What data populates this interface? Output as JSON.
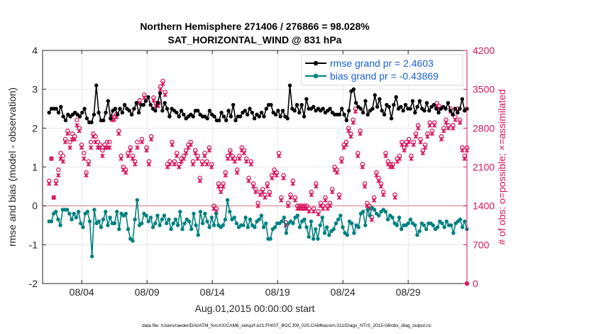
{
  "chart_data": {
    "type": "line",
    "title_line1": "Northern Hemisphere 271406 / 276866 = 98.028%",
    "title_line2": "SAT_HORIZONTAL_WIND @ 831 hPa",
    "xlabel": "Aug.01,2015 00:00:00 start",
    "ylabel_left": "rmse and bias (model - observation)",
    "ylabel_right": "# of obs: o=possible; ×=assimilated",
    "footnote": "data file: /Users/raeder/DAI/ATM_forcXX/CAM6_setup/f.e21.FHIST_BGC.f09_025.CAM6assim.011/Diags_NTrS_2015-08/obs_diag_output.nc",
    "x_range": [
      0,
      32.5
    ],
    "ylim_left": [
      -2,
      4
    ],
    "ylim_right": [
      0,
      4200
    ],
    "x_ticks": [
      {
        "pos": 3,
        "label": "08/04"
      },
      {
        "pos": 8,
        "label": "08/09"
      },
      {
        "pos": 13,
        "label": "08/14"
      },
      {
        "pos": 18,
        "label": "08/19"
      },
      {
        "pos": 23,
        "label": "08/24"
      },
      {
        "pos": 28,
        "label": "08/29"
      }
    ],
    "y_ticks_left": [
      "-2",
      "-1",
      "0",
      "1",
      "2",
      "3",
      "4"
    ],
    "y_ticks_right": [
      "0",
      "700",
      "1400",
      "2100",
      "2800",
      "3500",
      "4200"
    ],
    "grid": true,
    "legend_position": "top-right",
    "series": [
      {
        "name": "rmse grand pr = 2.4603",
        "color": "#000000",
        "values": [
          2.4,
          2.5,
          2.5,
          2.5,
          2.4,
          2.55,
          2.3,
          2.2,
          2.35,
          2.3,
          2.35,
          2.4,
          2.35,
          2.3,
          2.4,
          2.5,
          2.25,
          2.15,
          2.15,
          2.35,
          3.1,
          2.4,
          2.2,
          2.2,
          2.4,
          2.7,
          2.25,
          2.45,
          2.5,
          2.35,
          2.5,
          2.4,
          2.6,
          2.5,
          2.45,
          2.35,
          2.5,
          2.65,
          2.4,
          2.6,
          2.6,
          2.7,
          2.8,
          2.6,
          2.5,
          2.45,
          2.65,
          2.9,
          2.45,
          2.65,
          2.5,
          2.3,
          2.5,
          2.45,
          2.4,
          2.3,
          2.45,
          2.35,
          2.25,
          2.3,
          2.35,
          2.3,
          2.45,
          2.45,
          2.35,
          2.3,
          2.3,
          2.25,
          2.45,
          2.35,
          2.3,
          2.2,
          2.2,
          2.4,
          2.3,
          2.2,
          2.45,
          2.3,
          2.6,
          2.2,
          2.3,
          2.3,
          2.4,
          2.45,
          2.35,
          2.5,
          2.4,
          2.25,
          2.35,
          2.3,
          2.4,
          2.3,
          2.5,
          2.6,
          2.6,
          2.4,
          2.35,
          2.45,
          2.3,
          2.45,
          2.3,
          2.25,
          3.1,
          2.5,
          2.45,
          2.6,
          2.4,
          2.6,
          2.3,
          2.75,
          2.5,
          2.5,
          2.55,
          2.45,
          2.5,
          2.45,
          2.5,
          2.4,
          2.45,
          2.5,
          2.4,
          2.35,
          2.35,
          2.35,
          2.5,
          2.35,
          2.2,
          2.45,
          2.95,
          3.0,
          2.65,
          2.55,
          2.5,
          2.4,
          2.7,
          2.35,
          2.45,
          2.5,
          2.85,
          2.55,
          2.75,
          2.45,
          2.35,
          2.6,
          2.55,
          2.25,
          2.6,
          2.8,
          2.5,
          2.55,
          2.45,
          2.6,
          2.5,
          2.5,
          2.7,
          2.4,
          2.55,
          2.7,
          2.5,
          2.45,
          2.65,
          2.45,
          2.55,
          2.6,
          2.5,
          2.4,
          2.5,
          2.55,
          2.5,
          2.65,
          2.45,
          2.35,
          2.5,
          2.4,
          2.5,
          2.75,
          2.45,
          2.5
        ]
      },
      {
        "name": "bias grand pr = -0.43869",
        "color": "#008080",
        "values": [
          -0.4,
          -0.4,
          -0.2,
          -0.15,
          -0.35,
          -0.5,
          -0.1,
          -0.1,
          -0.1,
          -0.2,
          -0.35,
          -0.2,
          -0.3,
          -0.15,
          -0.45,
          -0.55,
          -0.2,
          -0.15,
          -0.4,
          -1.3,
          -0.1,
          -0.45,
          -0.4,
          -0.55,
          -0.35,
          -0.15,
          -0.5,
          -0.3,
          -0.45,
          -0.45,
          -0.15,
          -0.6,
          -0.2,
          -0.25,
          -0.2,
          -0.6,
          -0.85,
          -0.9,
          -0.35,
          0.15,
          -0.5,
          -0.45,
          -0.2,
          -0.25,
          -0.4,
          -0.3,
          -0.55,
          -0.45,
          -0.25,
          -0.5,
          -0.35,
          -0.25,
          -0.45,
          -0.35,
          -0.6,
          -0.45,
          -0.35,
          -0.5,
          -0.15,
          -0.6,
          -0.45,
          -0.35,
          -0.4,
          -0.6,
          -0.2,
          -0.5,
          -0.75,
          -0.15,
          -0.45,
          -0.2,
          -0.4,
          -0.55,
          -0.3,
          -0.5,
          -0.2,
          -0.5,
          -0.55,
          -0.5,
          -0.35,
          0.15,
          -0.15,
          -0.35,
          -0.3,
          -0.45,
          -0.55,
          -0.5,
          -0.5,
          -0.3,
          -0.55,
          -0.35,
          -0.5,
          -0.55,
          -0.4,
          -0.35,
          -0.25,
          -0.55,
          -0.45,
          -0.85,
          -0.85,
          -0.6,
          -0.55,
          -0.45,
          -0.45,
          -0.4,
          -0.3,
          -0.7,
          -0.45,
          -0.4,
          -0.45,
          -0.3,
          -0.25,
          -0.55,
          -0.4,
          -0.35,
          -0.55,
          -0.8,
          -0.4,
          -0.85,
          -0.6,
          -0.85,
          -0.5,
          -0.3,
          -0.7,
          -0.55,
          -0.75,
          -0.65,
          -0.6,
          -0.45,
          -0.35,
          -0.25,
          -0.55,
          -0.7,
          -0.75,
          -0.4,
          -0.45,
          -0.7,
          -0.5,
          -0.55,
          -0.2,
          -0.15,
          -0.5,
          -0.1,
          -0.25,
          -0.05,
          -0.1,
          -0.2,
          -0.25,
          -0.15,
          -0.1,
          -0.15,
          -0.35,
          -0.25,
          -0.3,
          -0.45,
          -0.5,
          -0.3,
          -0.6,
          -0.5,
          -0.5,
          -0.45,
          -0.35,
          -0.45,
          -0.5,
          -0.75,
          -0.65,
          -0.45,
          -0.5,
          -0.6,
          -0.45,
          -0.45,
          -0.5,
          -0.6,
          -0.55,
          -0.4,
          -0.45,
          -0.55,
          -0.4,
          -0.5,
          -0.5,
          -0.7,
          -0.45,
          -0.4,
          -0.35,
          -0.55,
          -0.4,
          -0.6
        ]
      },
      {
        "name": "# possible (o)",
        "color": "#d8155f",
        "axis": "right",
        "values": [
          1850,
          2250,
          1550,
          1850,
          2050,
          2350,
          2300,
          2600,
          2750,
          2550,
          2700,
          2650,
          2950,
          2800,
          2500,
          2350,
          2000,
          2200,
          2550,
          2700,
          2650,
          2550,
          2500,
          2400,
          2500,
          2550,
          2550,
          3000,
          3000,
          3050,
          2750,
          2300,
          2100,
          2050,
          2350,
          2450,
          2300,
          2200,
          2550,
          3300,
          2600,
          3400,
          2450,
          2200,
          2650,
          3350,
          3250,
          3250,
          3550,
          3650,
          3450,
          2150,
          2200,
          2550,
          2200,
          2350,
          2150,
          2250,
          2300,
          2400,
          2500,
          2550,
          2200,
          2400,
          2300,
          1900,
          2200,
          2350,
          2200,
          2450,
          2150,
          1400,
          1350,
          1800,
          1700,
          1800,
          2000,
          2300,
          2400,
          2300,
          2250,
          2050,
          2300,
          2450,
          2400,
          2250,
          1900,
          2200,
          1800,
          1700,
          1450,
          1650,
          1700,
          1600,
          1800,
          1650,
          1950,
          2050,
          2000,
          2350,
          1550,
          1950,
          1100,
          1450,
          1600,
          1850,
          1550,
          1400,
          1400,
          1400,
          1400,
          1400,
          1350,
          1650,
          1350,
          1800,
          1300,
          1450,
          1400,
          1550,
          1400,
          1450,
          1700,
          2100,
          2050,
          1600,
          2250,
          2500,
          2550,
          2800,
          2700,
          2950,
          3150,
          2350,
          2750,
          2150,
          1800,
          1450,
          1400,
          1200,
          1550,
          2000,
          1900,
          1800,
          1650,
          2350,
          2200,
          2150,
          2150,
          1600,
          2250,
          2300,
          2550,
          2450,
          2550,
          2600,
          2300,
          2550,
          2700,
          2850,
          2600,
          2400,
          2500,
          2700,
          2900,
          2750,
          2900,
          3250,
          3200,
          2650,
          2800,
          2950,
          2850,
          3150,
          2850,
          3000,
          3150,
          2950,
          2450,
          2300,
          2450
        ]
      },
      {
        "name": "# assimilated (×)",
        "color": "#d8155f",
        "axis": "right",
        "values": [
          1800,
          2250,
          1550,
          1800,
          1950,
          2250,
          2200,
          2550,
          2700,
          2450,
          2600,
          2600,
          2850,
          2750,
          2450,
          2250,
          1950,
          2150,
          2450,
          2650,
          2550,
          2450,
          2450,
          2300,
          2450,
          2450,
          2450,
          2950,
          2950,
          3000,
          2700,
          2250,
          2050,
          2000,
          2300,
          2400,
          2250,
          2150,
          2450,
          3250,
          2550,
          3350,
          2400,
          2150,
          2600,
          3300,
          3200,
          3200,
          3500,
          3600,
          3400,
          2100,
          2150,
          2500,
          2150,
          2300,
          2100,
          2200,
          2250,
          2350,
          2450,
          2500,
          2150,
          2350,
          2250,
          1850,
          2150,
          2300,
          2150,
          2400,
          2100,
          1350,
          1300,
          1750,
          1650,
          1750,
          1950,
          2250,
          2350,
          2250,
          2200,
          2000,
          2250,
          2400,
          2350,
          2200,
          1850,
          2150,
          1750,
          1650,
          1400,
          1600,
          1650,
          1550,
          1750,
          1600,
          1900,
          2000,
          1950,
          2300,
          1500,
          1900,
          1050,
          1400,
          1550,
          1800,
          1500,
          1350,
          1350,
          1350,
          1350,
          1350,
          1300,
          1600,
          1300,
          1750,
          1250,
          1400,
          1350,
          1500,
          1350,
          1400,
          1650,
          2050,
          2000,
          1550,
          2200,
          2450,
          2500,
          2750,
          2650,
          2900,
          3100,
          2300,
          2700,
          2100,
          1750,
          1400,
          1350,
          1150,
          1500,
          1950,
          1850,
          1750,
          1600,
          2300,
          2150,
          2100,
          2100,
          1550,
          2200,
          2250,
          2500,
          2400,
          2500,
          2550,
          2250,
          2500,
          2650,
          2800,
          2550,
          2350,
          2450,
          2650,
          2850,
          2700,
          2850,
          3200,
          3150,
          2600,
          2750,
          2900,
          2800,
          3100,
          2800,
          2950,
          3100,
          2900,
          2400,
          2250,
          2400
        ]
      }
    ]
  }
}
